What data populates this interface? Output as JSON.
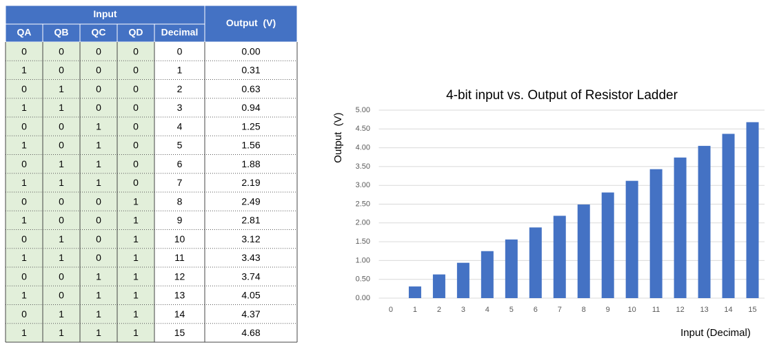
{
  "table": {
    "group_header": "Input",
    "columns": [
      "QA",
      "QB",
      "QC",
      "QD",
      "Decimal"
    ],
    "output_header": "Output  (V)",
    "rows": [
      [
        "0",
        "0",
        "0",
        "0",
        "0",
        "0.00"
      ],
      [
        "1",
        "0",
        "0",
        "0",
        "1",
        "0.31"
      ],
      [
        "0",
        "1",
        "0",
        "0",
        "2",
        "0.63"
      ],
      [
        "1",
        "1",
        "0",
        "0",
        "3",
        "0.94"
      ],
      [
        "0",
        "0",
        "1",
        "0",
        "4",
        "1.25"
      ],
      [
        "1",
        "0",
        "1",
        "0",
        "5",
        "1.56"
      ],
      [
        "0",
        "1",
        "1",
        "0",
        "6",
        "1.88"
      ],
      [
        "1",
        "1",
        "1",
        "0",
        "7",
        "2.19"
      ],
      [
        "0",
        "0",
        "0",
        "1",
        "8",
        "2.49"
      ],
      [
        "1",
        "0",
        "0",
        "1",
        "9",
        "2.81"
      ],
      [
        "0",
        "1",
        "0",
        "1",
        "10",
        "3.12"
      ],
      [
        "1",
        "1",
        "0",
        "1",
        "11",
        "3.43"
      ],
      [
        "0",
        "0",
        "1",
        "1",
        "12",
        "3.74"
      ],
      [
        "1",
        "0",
        "1",
        "1",
        "13",
        "4.05"
      ],
      [
        "0",
        "1",
        "1",
        "1",
        "14",
        "4.37"
      ],
      [
        "1",
        "1",
        "1",
        "1",
        "15",
        "4.68"
      ]
    ]
  },
  "chart_data": {
    "type": "bar",
    "title": "4-bit input vs. Output of Resistor Ladder",
    "x_label": "Input (Decimal)",
    "y_label": "Output  (V)",
    "categories": [
      "0",
      "1",
      "2",
      "3",
      "4",
      "5",
      "6",
      "7",
      "8",
      "9",
      "10",
      "11",
      "12",
      "13",
      "14",
      "15"
    ],
    "values": [
      0,
      0.31,
      0.63,
      0.94,
      1.25,
      1.56,
      1.88,
      2.19,
      2.49,
      2.81,
      3.12,
      3.43,
      3.74,
      4.05,
      4.37,
      4.68
    ],
    "color": "#4472c4",
    "ylim": [
      0,
      5
    ],
    "grid": true,
    "yticks": [
      {
        "value": 0,
        "label": "0.00"
      },
      {
        "value": 0.5,
        "label": "0.50"
      },
      {
        "value": 1,
        "label": "1.00"
      },
      {
        "value": 1.5,
        "label": "1.50"
      },
      {
        "value": 2,
        "label": "2.00"
      },
      {
        "value": 2.5,
        "label": "2.50"
      },
      {
        "value": 3,
        "label": "3.00"
      },
      {
        "value": 3.5,
        "label": "3.50"
      },
      {
        "value": 4,
        "label": "4.00"
      },
      {
        "value": 4.5,
        "label": "4.50"
      },
      {
        "value": 5,
        "label": "5.00"
      }
    ]
  }
}
